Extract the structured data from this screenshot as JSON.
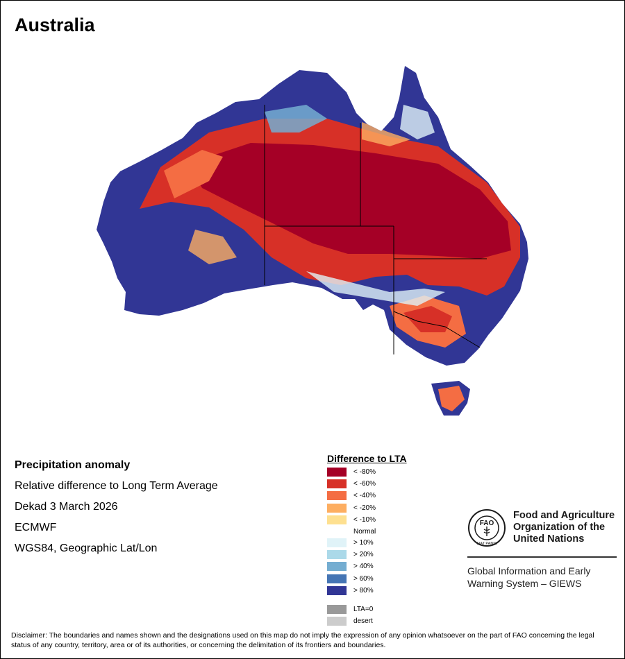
{
  "map_title": "Australia",
  "info": {
    "heading": "Precipitation anomaly",
    "subtitle": "Relative difference to Long Term Average",
    "period": "Dekad 3 March 2026",
    "source": "ECMWF",
    "projection": "WGS84, Geographic Lat/Lon"
  },
  "legend": {
    "title": "Difference to LTA",
    "negative": [
      {
        "label": "< -80%",
        "color": "#a50026"
      },
      {
        "label": "< -60%",
        "color": "#d73027"
      },
      {
        "label": "< -40%",
        "color": "#f46d43"
      },
      {
        "label": "< -20%",
        "color": "#fdae61"
      },
      {
        "label": "< -10%",
        "color": "#fee090"
      }
    ],
    "normal": "Normal",
    "positive": [
      {
        "label": "> 10%",
        "color": "#e0f3f8"
      },
      {
        "label": "> 20%",
        "color": "#abd9e9"
      },
      {
        "label": "> 40%",
        "color": "#74add1"
      },
      {
        "label": "> 60%",
        "color": "#4575b4"
      },
      {
        "label": "> 80%",
        "color": "#313695"
      }
    ],
    "extra": [
      {
        "label": "LTA=0",
        "color": "#999999"
      },
      {
        "label": "desert",
        "color": "#cccccc"
      }
    ]
  },
  "org": {
    "name_lines": [
      "Food and Agriculture",
      "Organization of the",
      "United Nations"
    ],
    "logo_text": "FAO",
    "logo_motto": "FIAT PANIS",
    "system_lines": [
      "Global Information and Early",
      "Warning System – GIEWS"
    ]
  },
  "disclaimer": "Disclaimer: The boundaries and names shown and the designations used on this map do not imply the expression of any opinion whatsoever on the part of FAO concerning the legal status of any country, territory, area or of its authorities, or concerning the delimitation of its frontiers and boundaries."
}
